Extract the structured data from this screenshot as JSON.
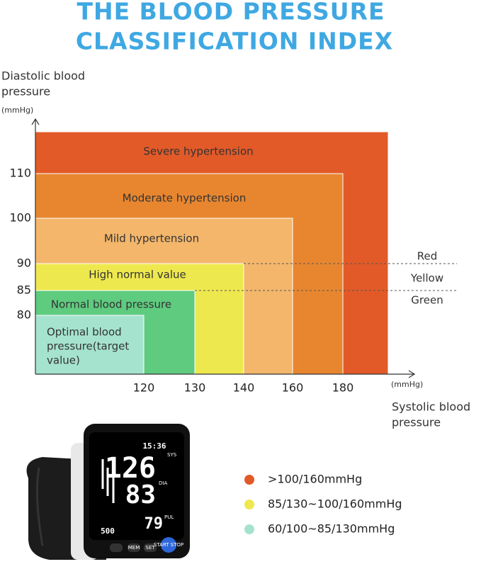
{
  "title": [
    "THE BLOOD PRESSURE",
    "CLASSIFICATION INDEX"
  ],
  "y_axis": {
    "label_lines": [
      "Diastolic blood",
      "pressure"
    ],
    "unit": "(mmHg)",
    "ticks": [
      110,
      100,
      90,
      85,
      80
    ]
  },
  "x_axis": {
    "label_lines": [
      "Systolic blood",
      "pressure"
    ],
    "unit": "(mmHg)",
    "ticks": [
      120,
      130,
      140,
      160,
      180
    ]
  },
  "zones": [
    {
      "label": "Severe hypertension"
    },
    {
      "label": "Moderate hypertension"
    },
    {
      "label": "Mild hypertension"
    },
    {
      "label": "High normal value"
    },
    {
      "label": "Normal blood pressure"
    },
    {
      "label_lines": [
        "Optimal blood",
        "pressure(target",
        "value)"
      ]
    }
  ],
  "bands": [
    "Red",
    "Yellow",
    "Green"
  ],
  "legend": [
    ">100/160mmHg",
    "85/130~100/160mmHg",
    "60/100~85/130mmHg"
  ],
  "device": {
    "sys": "126",
    "dia": "83",
    "pul": "79",
    "sys_label": "SYS",
    "dia_label": "DIA",
    "pul_label": "PUL",
    "time": "15:36",
    "memory": "500",
    "buttons": [
      "MEM",
      "SET",
      "START STOP"
    ]
  }
}
